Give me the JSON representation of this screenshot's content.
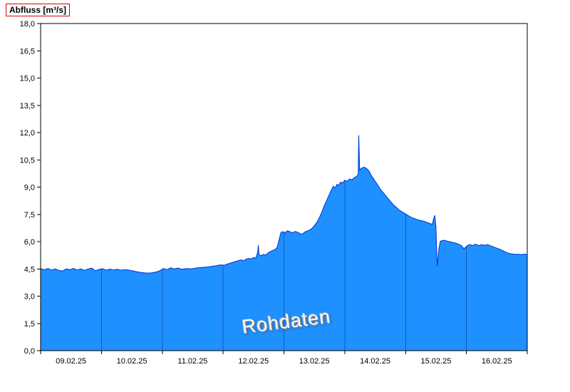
{
  "title": "Abfluss [m³/s]",
  "watermark": "Rohdaten",
  "chart_data": {
    "type": "area",
    "title": "Abfluss [m³/s]",
    "ylabel": "Abfluss [m³/s]",
    "xlabel": "",
    "ylim": [
      0,
      18
    ],
    "y_tick_step": 1.5,
    "y_tick_labels": [
      "0,0",
      "1,5",
      "3,0",
      "4,5",
      "6,0",
      "7,5",
      "9,0",
      "10,5",
      "12,0",
      "13,5",
      "15,0",
      "16,5",
      "18,0"
    ],
    "x_labels": [
      "09.02.25",
      "10.02.25",
      "11.02.25",
      "12.02.25",
      "13.02.25",
      "14.02.25",
      "15.02.25",
      "16.02.25"
    ],
    "x_domain_days": [
      0,
      8
    ],
    "grid": "vertical lines at day boundaries, visible only inside filled area",
    "legend_position": "none",
    "colors": {
      "fill": "#1E90FF",
      "line": "#0033CC",
      "grid_in_area": "#0E5FB8",
      "axis": "#000000",
      "title_box": "#e00000",
      "watermark_text": "#f8f8f8"
    },
    "series": [
      {
        "name": "Abfluss Rohdaten",
        "unit": "m³/s",
        "points": [
          [
            0.0,
            4.52
          ],
          [
            0.06,
            4.45
          ],
          [
            0.12,
            4.52
          ],
          [
            0.18,
            4.44
          ],
          [
            0.24,
            4.5
          ],
          [
            0.3,
            4.42
          ],
          [
            0.36,
            4.38
          ],
          [
            0.42,
            4.5
          ],
          [
            0.48,
            4.46
          ],
          [
            0.54,
            4.52
          ],
          [
            0.6,
            4.44
          ],
          [
            0.66,
            4.5
          ],
          [
            0.72,
            4.42
          ],
          [
            0.78,
            4.5
          ],
          [
            0.84,
            4.54
          ],
          [
            0.9,
            4.4
          ],
          [
            0.96,
            4.47
          ],
          [
            1.02,
            4.51
          ],
          [
            1.08,
            4.43
          ],
          [
            1.14,
            4.49
          ],
          [
            1.2,
            4.44
          ],
          [
            1.26,
            4.48
          ],
          [
            1.32,
            4.43
          ],
          [
            1.4,
            4.46
          ],
          [
            1.5,
            4.4
          ],
          [
            1.58,
            4.34
          ],
          [
            1.66,
            4.3
          ],
          [
            1.74,
            4.27
          ],
          [
            1.82,
            4.28
          ],
          [
            1.9,
            4.33
          ],
          [
            1.96,
            4.4
          ],
          [
            2.02,
            4.52
          ],
          [
            2.08,
            4.46
          ],
          [
            2.14,
            4.56
          ],
          [
            2.2,
            4.5
          ],
          [
            2.26,
            4.55
          ],
          [
            2.32,
            4.48
          ],
          [
            2.4,
            4.52
          ],
          [
            2.48,
            4.5
          ],
          [
            2.56,
            4.55
          ],
          [
            2.64,
            4.58
          ],
          [
            2.72,
            4.6
          ],
          [
            2.8,
            4.63
          ],
          [
            2.88,
            4.67
          ],
          [
            2.96,
            4.72
          ],
          [
            3.02,
            4.7
          ],
          [
            3.08,
            4.78
          ],
          [
            3.14,
            4.84
          ],
          [
            3.2,
            4.9
          ],
          [
            3.26,
            4.96
          ],
          [
            3.3,
            5.0
          ],
          [
            3.34,
            4.95
          ],
          [
            3.38,
            5.04
          ],
          [
            3.42,
            5.08
          ],
          [
            3.46,
            5.05
          ],
          [
            3.5,
            5.12
          ],
          [
            3.54,
            5.1
          ],
          [
            3.57,
            5.45
          ],
          [
            3.58,
            5.8
          ],
          [
            3.59,
            5.3
          ],
          [
            3.62,
            5.22
          ],
          [
            3.66,
            5.3
          ],
          [
            3.7,
            5.26
          ],
          [
            3.74,
            5.38
          ],
          [
            3.78,
            5.46
          ],
          [
            3.82,
            5.52
          ],
          [
            3.86,
            5.58
          ],
          [
            3.89,
            5.7
          ],
          [
            3.92,
            6.1
          ],
          [
            3.95,
            6.5
          ],
          [
            3.98,
            6.55
          ],
          [
            4.02,
            6.5
          ],
          [
            4.06,
            6.6
          ],
          [
            4.1,
            6.54
          ],
          [
            4.14,
            6.48
          ],
          [
            4.18,
            6.56
          ],
          [
            4.22,
            6.52
          ],
          [
            4.26,
            6.45
          ],
          [
            4.3,
            6.4
          ],
          [
            4.34,
            6.52
          ],
          [
            4.38,
            6.58
          ],
          [
            4.42,
            6.64
          ],
          [
            4.46,
            6.72
          ],
          [
            4.5,
            6.88
          ],
          [
            4.54,
            7.05
          ],
          [
            4.58,
            7.3
          ],
          [
            4.62,
            7.6
          ],
          [
            4.66,
            7.95
          ],
          [
            4.7,
            8.25
          ],
          [
            4.74,
            8.55
          ],
          [
            4.78,
            8.85
          ],
          [
            4.81,
            9.05
          ],
          [
            4.84,
            8.95
          ],
          [
            4.87,
            9.15
          ],
          [
            4.9,
            9.1
          ],
          [
            4.93,
            9.28
          ],
          [
            4.96,
            9.22
          ],
          [
            5.0,
            9.38
          ],
          [
            5.04,
            9.32
          ],
          [
            5.08,
            9.45
          ],
          [
            5.12,
            9.4
          ],
          [
            5.16,
            9.52
          ],
          [
            5.2,
            9.6
          ],
          [
            5.22,
            9.72
          ],
          [
            5.23,
            11.85
          ],
          [
            5.245,
            9.95
          ],
          [
            5.28,
            10.05
          ],
          [
            5.32,
            10.1
          ],
          [
            5.36,
            10.02
          ],
          [
            5.4,
            9.88
          ],
          [
            5.44,
            9.62
          ],
          [
            5.48,
            9.42
          ],
          [
            5.52,
            9.22
          ],
          [
            5.56,
            9.02
          ],
          [
            5.6,
            8.82
          ],
          [
            5.65,
            8.62
          ],
          [
            5.7,
            8.42
          ],
          [
            5.75,
            8.22
          ],
          [
            5.8,
            8.02
          ],
          [
            5.85,
            7.88
          ],
          [
            5.9,
            7.72
          ],
          [
            5.95,
            7.62
          ],
          [
            6.0,
            7.52
          ],
          [
            6.05,
            7.42
          ],
          [
            6.1,
            7.32
          ],
          [
            6.15,
            7.26
          ],
          [
            6.2,
            7.2
          ],
          [
            6.25,
            7.16
          ],
          [
            6.3,
            7.12
          ],
          [
            6.35,
            7.06
          ],
          [
            6.4,
            7.0
          ],
          [
            6.44,
            6.95
          ],
          [
            6.46,
            7.25
          ],
          [
            6.48,
            7.45
          ],
          [
            6.5,
            6.8
          ],
          [
            6.52,
            4.65
          ],
          [
            6.545,
            5.55
          ],
          [
            6.57,
            6.02
          ],
          [
            6.62,
            6.08
          ],
          [
            6.67,
            6.04
          ],
          [
            6.72,
            6.0
          ],
          [
            6.77,
            5.96
          ],
          [
            6.82,
            5.92
          ],
          [
            6.87,
            5.86
          ],
          [
            6.92,
            5.78
          ],
          [
            6.96,
            5.6
          ],
          [
            7.0,
            5.74
          ],
          [
            7.05,
            5.84
          ],
          [
            7.1,
            5.79
          ],
          [
            7.15,
            5.86
          ],
          [
            7.2,
            5.78
          ],
          [
            7.25,
            5.83
          ],
          [
            7.3,
            5.8
          ],
          [
            7.35,
            5.84
          ],
          [
            7.4,
            5.77
          ],
          [
            7.45,
            5.7
          ],
          [
            7.5,
            5.64
          ],
          [
            7.55,
            5.58
          ],
          [
            7.6,
            5.5
          ],
          [
            7.65,
            5.42
          ],
          [
            7.7,
            5.36
          ],
          [
            7.75,
            5.32
          ],
          [
            7.8,
            5.3
          ],
          [
            7.85,
            5.31
          ],
          [
            7.9,
            5.29
          ],
          [
            7.95,
            5.31
          ],
          [
            8.0,
            5.3
          ]
        ]
      }
    ]
  }
}
